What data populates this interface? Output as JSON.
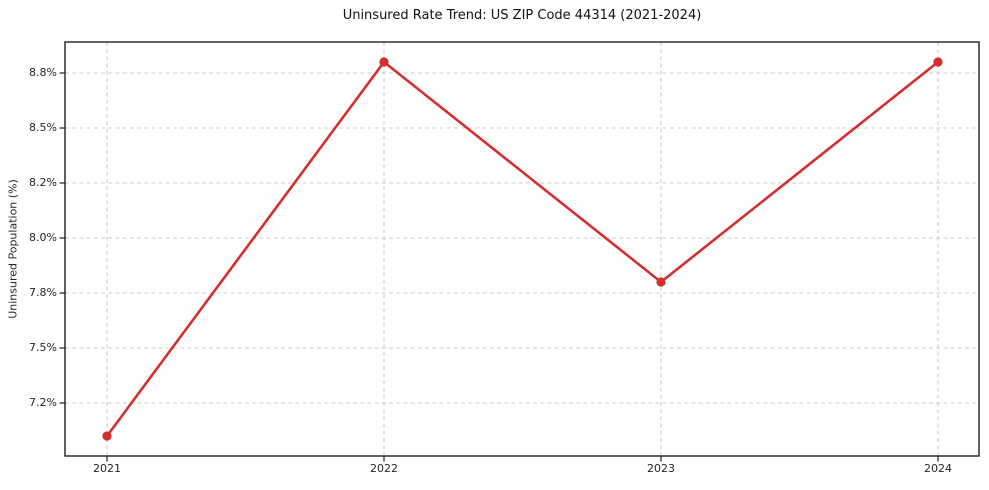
{
  "chart_data": {
    "type": "line",
    "title": "Uninsured Rate Trend: US ZIP Code 44314 (2021-2024)",
    "xlabel": "",
    "ylabel": "Uninsured Population (%)",
    "x": [
      "2021",
      "2022",
      "2023",
      "2024"
    ],
    "series": [
      {
        "name": "Uninsured rate",
        "values": [
          7.02,
          8.86,
          7.84,
          8.86
        ]
      }
    ],
    "y_ticks": [
      {
        "label": "8.8%",
        "value": 8.8
      },
      {
        "label": "8.5%",
        "value": 8.5
      },
      {
        "label": "8.2%",
        "value": 8.2
      },
      {
        "label": "8.0%",
        "value": 8.0
      },
      {
        "label": "7.8%",
        "value": 7.8
      },
      {
        "label": "7.5%",
        "value": 7.5
      },
      {
        "label": "7.2%",
        "value": 7.2
      }
    ],
    "legend": "none",
    "grid": "dashed, horizontal and vertical",
    "colors": {
      "series": "#d32f2f",
      "grid": "#cccccc",
      "spine": "#1f1f1f",
      "text": "#262626",
      "title_text": "#111111",
      "background": "#ffffff"
    }
  }
}
